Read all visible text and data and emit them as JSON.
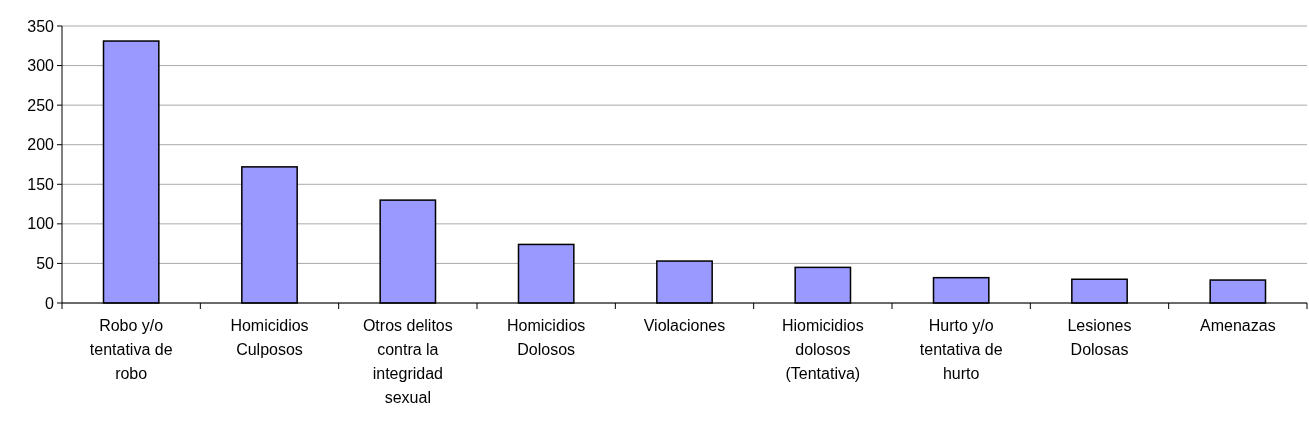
{
  "chart_data": {
    "type": "bar",
    "categories": [
      "Robo y/o tentativa de robo",
      "Homicidios Culposos",
      "Otros delitos contra la integridad sexual",
      "Homicidios Dolosos",
      "Violaciones",
      "Hiomicidios dolosos (Tentativa)",
      "Hurto y/o tentativa de hurto",
      "Lesiones Dolosas",
      "Amenazas"
    ],
    "values": [
      331,
      172,
      130,
      74,
      53,
      45,
      32,
      30,
      29
    ],
    "color": "#9999ff",
    "ylim": [
      0,
      350
    ],
    "yticks": [
      0,
      50,
      100,
      150,
      200,
      250,
      300,
      350
    ],
    "grid": "y"
  }
}
